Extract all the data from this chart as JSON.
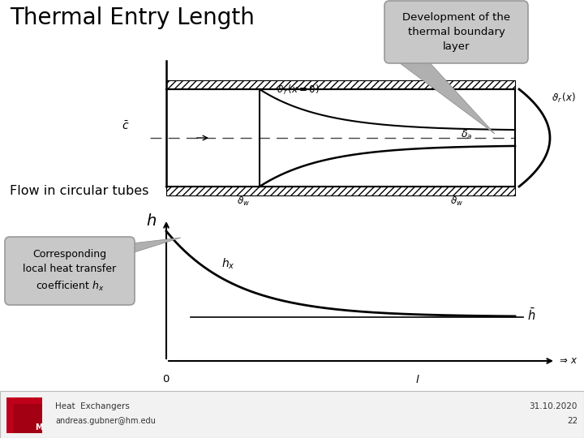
{
  "title": "Thermal Entry Length",
  "callout_top_text": "Development of the\nthermal boundary\nlayer",
  "callout_bottom_text": "Corresponding\nlocal heat transfer\ncoefficient $h_x$",
  "flow_text": "Flow in circular tubes",
  "footer_left1": "Heat  Exchangers",
  "footer_left2": "andreas.gubner@hm.edu",
  "footer_right1": "31.10.2020",
  "footer_right2": "22",
  "bg_color": "#ffffff",
  "title_fontsize": 20,
  "callout_bg": "#c8c8c8",
  "callout_edge": "#999999"
}
